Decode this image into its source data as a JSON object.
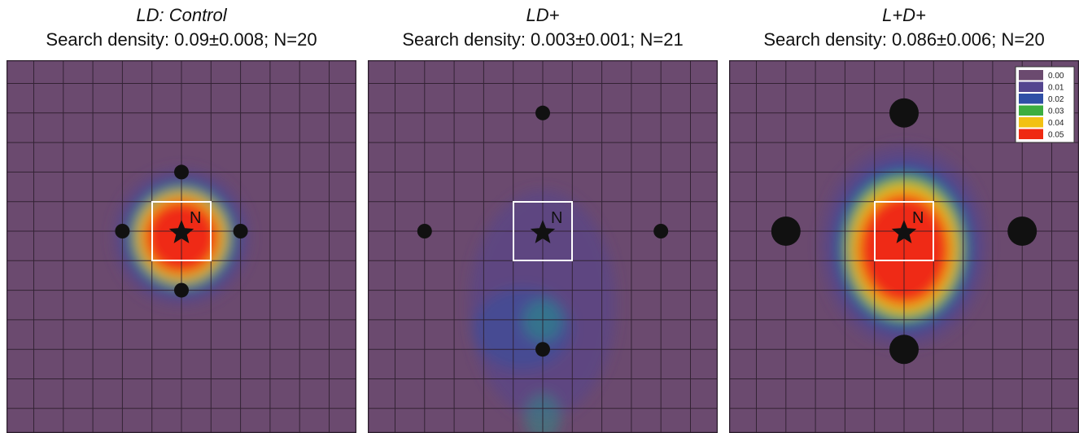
{
  "chart_data": [
    {
      "type": "heatmap",
      "title": "LD: Control",
      "subtitle": "Search density: 0.09±0.008; N=20",
      "nest_label": "N",
      "landmarks": [
        {
          "gx": 6,
          "gy": 4.0,
          "size": "small"
        },
        {
          "gx": 4,
          "gy": 6.0,
          "size": "small"
        },
        {
          "gx": 8,
          "gy": 6.0,
          "size": "small"
        },
        {
          "gx": 6,
          "gy": 8.0,
          "size": "small"
        }
      ],
      "hotspot": {
        "gx": 6,
        "gy": 6.2,
        "peak": 0.05
      }
    },
    {
      "type": "heatmap",
      "title": "LD+",
      "subtitle": "Search density: 0.003±0.001; N=21",
      "nest_label": "N",
      "landmarks": [
        {
          "gx": 6,
          "gy": 2.0,
          "size": "small"
        },
        {
          "gx": 2,
          "gy": 6.0,
          "size": "small"
        },
        {
          "gx": 10,
          "gy": 6.0,
          "size": "small"
        },
        {
          "gx": 6,
          "gy": 10.0,
          "size": "small"
        }
      ],
      "hotspot": {
        "gx": 6,
        "gy": 9.5,
        "peak": 0.02
      }
    },
    {
      "type": "heatmap",
      "title": "L+D+",
      "subtitle": "Search density: 0.086±0.006; N=20",
      "nest_label": "N",
      "landmarks": [
        {
          "gx": 6,
          "gy": 2.0,
          "size": "large"
        },
        {
          "gx": 2,
          "gy": 6.0,
          "size": "large"
        },
        {
          "gx": 10,
          "gy": 6.0,
          "size": "large"
        },
        {
          "gx": 6,
          "gy": 10.0,
          "size": "large"
        }
      ],
      "hotspot": {
        "gx": 6,
        "gy": 6.6,
        "peak": 0.05
      },
      "legend": {
        "placement": "top-right",
        "entries": [
          {
            "label": "0.00",
            "color": "#6b4a6f"
          },
          {
            "label": "0.01",
            "color": "#54458f"
          },
          {
            "label": "0.02",
            "color": "#2f4fa6"
          },
          {
            "label": "0.03",
            "color": "#3cae3f"
          },
          {
            "label": "0.04",
            "color": "#f2c112"
          },
          {
            "label": "0.05",
            "color": "#ef2a12"
          }
        ]
      }
    }
  ],
  "colors": {
    "background": "#6b4a6f",
    "grid": "#2a1d2a",
    "nest_box": "#ffffff",
    "marker": "#111111"
  }
}
